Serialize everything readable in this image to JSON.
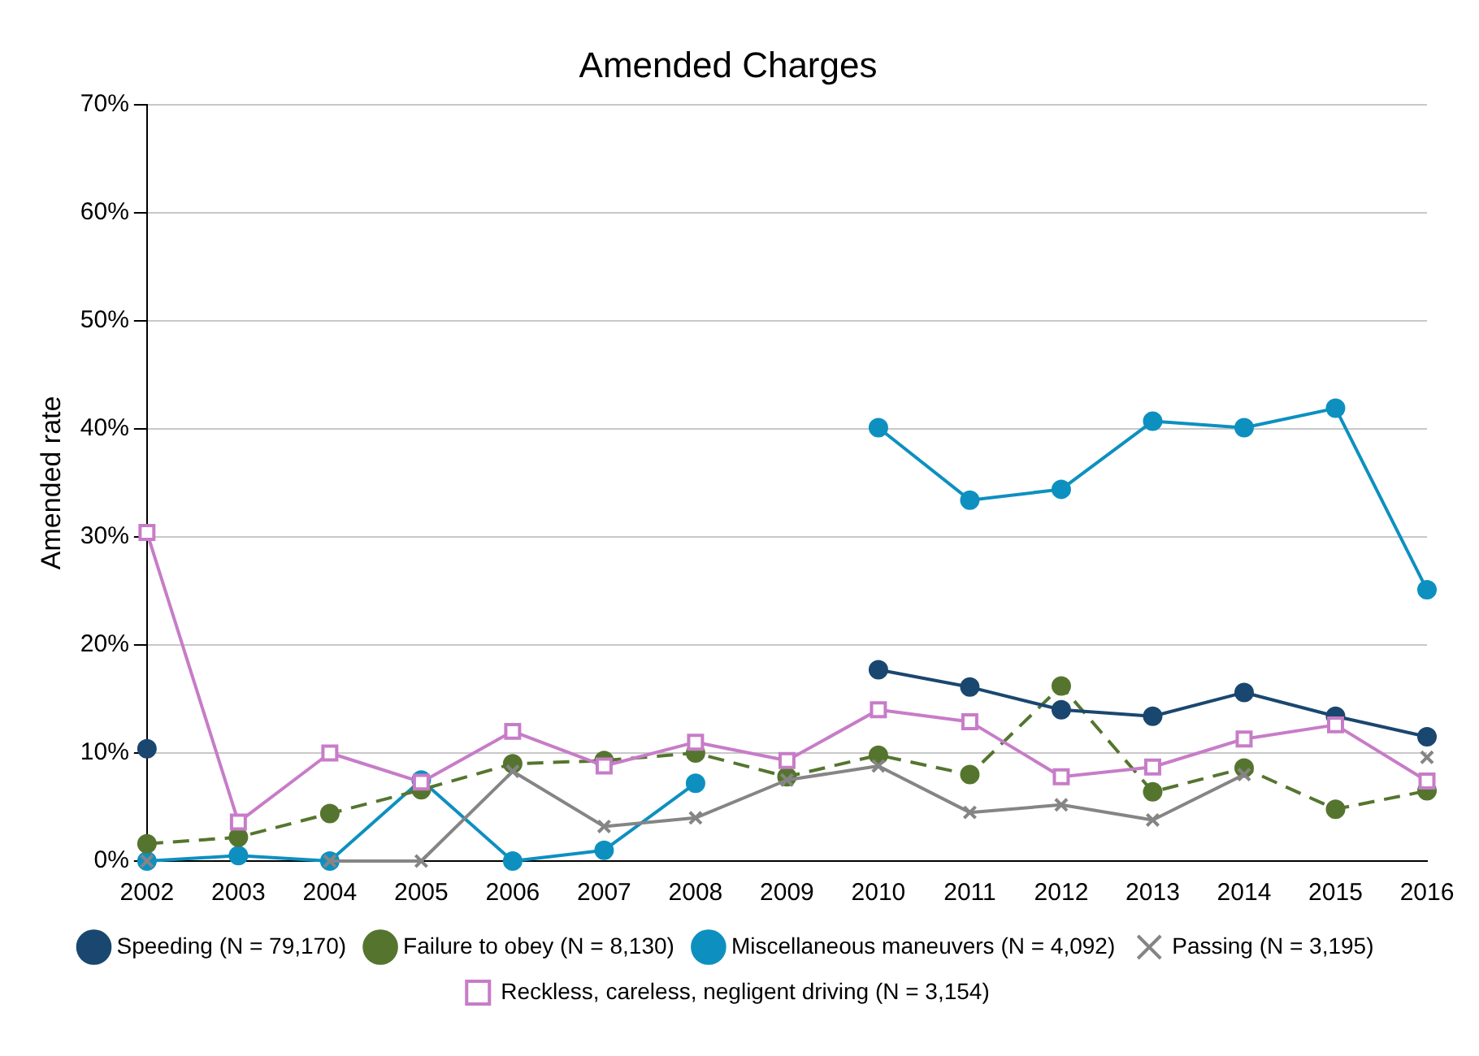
{
  "chart_data": {
    "type": "line",
    "title": "Amended Charges",
    "ylabel": "Amended rate",
    "categories": [
      "2002",
      "2003",
      "2004",
      "2005",
      "2006",
      "2007",
      "2008",
      "2009",
      "2010",
      "2011",
      "2012",
      "2013",
      "2014",
      "2015",
      "2016"
    ],
    "ylim": [
      0,
      70
    ],
    "yticks": [
      {
        "value": 0,
        "label": "0%"
      },
      {
        "value": 10,
        "label": "10%"
      },
      {
        "value": 20,
        "label": "20%"
      },
      {
        "value": 30,
        "label": "30%"
      },
      {
        "value": 40,
        "label": "40%"
      },
      {
        "value": 50,
        "label": "50%"
      },
      {
        "value": 60,
        "label": "60%"
      },
      {
        "value": 70,
        "label": "70%"
      }
    ],
    "grid": "y",
    "legend": "bottom",
    "series": [
      {
        "name": "Speeding (N = 79,170)",
        "color": "#1a476f",
        "marker": "circle",
        "line_style": "solid",
        "values": [
          10.4,
          null,
          null,
          null,
          null,
          null,
          null,
          null,
          17.7,
          16.1,
          14.0,
          13.4,
          15.6,
          13.4,
          11.5
        ]
      },
      {
        "name": "Failure to obey (N = 8,130)",
        "color": "#55752f",
        "marker": "circle",
        "line_style": "dashed",
        "values": [
          1.6,
          2.2,
          4.4,
          6.6,
          9.0,
          9.3,
          10.0,
          7.8,
          9.8,
          8.0,
          16.2,
          6.4,
          8.6,
          4.8,
          6.5
        ]
      },
      {
        "name": "Miscellaneous maneuvers (N = 4,092)",
        "color": "#0d90c0",
        "marker": "circle",
        "line_style": "solid",
        "values": [
          0,
          0.5,
          0,
          7.5,
          0,
          1.0,
          7.2,
          null,
          40.1,
          33.4,
          34.4,
          40.7,
          40.1,
          41.9,
          25.1
        ]
      },
      {
        "name": "Passing (N = 3,195)",
        "color": "#858585",
        "marker": "cross",
        "line_style": "solid",
        "values": [
          0,
          null,
          0,
          0,
          8.3,
          3.2,
          4.0,
          7.5,
          8.8,
          4.5,
          5.2,
          3.8,
          8.0,
          null,
          9.6
        ]
      },
      {
        "name": "Reckless, careless, negligent driving (N = 3,154)",
        "color": "#c77cc8",
        "marker": "square",
        "line_style": "solid",
        "values": [
          30.4,
          3.6,
          10.0,
          7.3,
          12.0,
          8.8,
          11.0,
          9.3,
          14.0,
          12.9,
          7.8,
          8.7,
          11.3,
          12.6,
          7.4
        ]
      }
    ]
  }
}
